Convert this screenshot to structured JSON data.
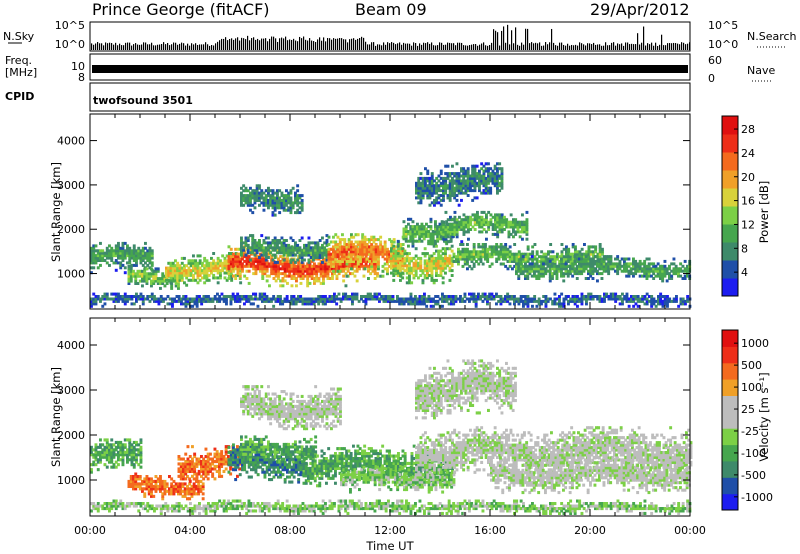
{
  "header": {
    "station": "Prince George (fitACF)",
    "beam": "Beam 09",
    "date": "29/Apr/2012"
  },
  "strip_labels": {
    "nsky": "N.Sky",
    "nsky_ticks": [
      "10^5",
      "10^0"
    ],
    "nsearch": "N.Search",
    "nsearch_ticks": [
      "10^5",
      "10^0"
    ],
    "freq_line1": "Freq.",
    "freq_line2": "[MHz]",
    "freq_ticks": [
      "10",
      "8"
    ],
    "nave": "Nave",
    "nave_ticks": [
      "60",
      "0"
    ],
    "cpid": "CPID",
    "cpid_value": "twofsound 3501"
  },
  "chart_data": [
    {
      "type": "heatmap",
      "name": "power",
      "ylabel": "Slant Range [km]",
      "ylim": [
        200,
        4600
      ],
      "yticks": [
        "1000",
        "2000",
        "3000",
        "4000"
      ],
      "xlim": [
        0,
        24
      ],
      "colorbar": {
        "label": "Power [dB]",
        "ticks": [
          "4",
          "8",
          "12",
          "16",
          "20",
          "24",
          "28"
        ],
        "colors": [
          "#1c1cf0",
          "#1f4fa8",
          "#3e8a6a",
          "#46a64e",
          "#7cd046",
          "#d8d23a",
          "#f0a028",
          "#f46a1e",
          "#ee2e18",
          "#e01010"
        ]
      },
      "bands": [
        {
          "t0": 0.0,
          "t1": 2.5,
          "r": 1350,
          "w": 220,
          "p": 10
        },
        {
          "t0": 1.5,
          "t1": 3.5,
          "r": 900,
          "w": 160,
          "p": 14
        },
        {
          "t0": 3.0,
          "t1": 6.0,
          "r": 1100,
          "w": 240,
          "p": 18
        },
        {
          "t0": 5.5,
          "t1": 11.5,
          "r": 1150,
          "w": 280,
          "p": 27
        },
        {
          "t0": 6.0,
          "t1": 9.5,
          "r": 1550,
          "w": 200,
          "p": 9
        },
        {
          "t0": 9.5,
          "t1": 12.5,
          "r": 1400,
          "w": 300,
          "p": 24
        },
        {
          "t0": 12.0,
          "t1": 14.5,
          "r": 1250,
          "w": 300,
          "p": 18
        },
        {
          "t0": 12.5,
          "t1": 14.5,
          "r": 1950,
          "w": 220,
          "p": 12
        },
        {
          "t0": 14.0,
          "t1": 17.5,
          "r": 2050,
          "w": 220,
          "p": 12
        },
        {
          "t0": 14.5,
          "t1": 20.5,
          "r": 1350,
          "w": 200,
          "p": 12
        },
        {
          "t0": 17.0,
          "t1": 24.0,
          "r": 1100,
          "w": 180,
          "p": 10
        },
        {
          "t0": 6.0,
          "t1": 8.5,
          "r": 2650,
          "w": 220,
          "p": 8
        },
        {
          "t0": 13.0,
          "t1": 16.5,
          "r": 3000,
          "w": 300,
          "p": 7
        },
        {
          "t0": 0.0,
          "t1": 24.0,
          "r": 400,
          "w": 100,
          "p": 5
        }
      ]
    },
    {
      "type": "heatmap",
      "name": "velocity",
      "ylabel": "Slant Range [km]",
      "ylim": [
        200,
        4600
      ],
      "yticks": [
        "1000",
        "2000",
        "3000",
        "4000"
      ],
      "xlim": [
        0,
        24
      ],
      "xticks": [
        "00:00",
        "04:00",
        "08:00",
        "12:00",
        "16:00",
        "20:00",
        "00:00"
      ],
      "xlabel": "Time UT",
      "colorbar": {
        "label": "Velocity [m s⁻¹]",
        "ticks": [
          "1000",
          "500",
          "100",
          "25",
          "-25",
          "-100",
          "-500",
          "-1000"
        ],
        "colors": [
          "#1c1cf0",
          "#1f4fa8",
          "#3e8a6a",
          "#46a64e",
          "#7cd046",
          "#bdbdbd",
          "#bdbdbd",
          "#f0a028",
          "#f46a1e",
          "#ee2e18",
          "#e01010"
        ]
      },
      "bands": [
        {
          "t0": 0.0,
          "t1": 2.0,
          "r": 1500,
          "w": 250,
          "v": 3
        },
        {
          "t0": 1.5,
          "t1": 4.5,
          "r": 850,
          "w": 180,
          "v": 8
        },
        {
          "t0": 3.5,
          "t1": 6.0,
          "r": 1350,
          "w": 250,
          "v": 8
        },
        {
          "t0": 5.5,
          "t1": 8.5,
          "r": 1350,
          "w": 260,
          "v": 2
        },
        {
          "t0": 6.0,
          "t1": 9.0,
          "r": 1650,
          "w": 200,
          "v": 3
        },
        {
          "t0": 8.5,
          "t1": 14.5,
          "r": 1300,
          "w": 280,
          "v": 3
        },
        {
          "t0": 10.0,
          "t1": 14.5,
          "r": 1000,
          "w": 180,
          "v": 4
        },
        {
          "t0": 13.0,
          "t1": 24.0,
          "r": 1600,
          "w": 350,
          "v": 5
        },
        {
          "t0": 16.0,
          "t1": 24.0,
          "r": 1100,
          "w": 250,
          "v": 5
        },
        {
          "t0": 6.0,
          "t1": 10.0,
          "r": 2600,
          "w": 300,
          "v": 5
        },
        {
          "t0": 13.0,
          "t1": 17.0,
          "r": 3000,
          "w": 400,
          "v": 5
        },
        {
          "t0": 0.0,
          "t1": 24.0,
          "r": 380,
          "w": 90,
          "v": 4
        }
      ]
    }
  ]
}
